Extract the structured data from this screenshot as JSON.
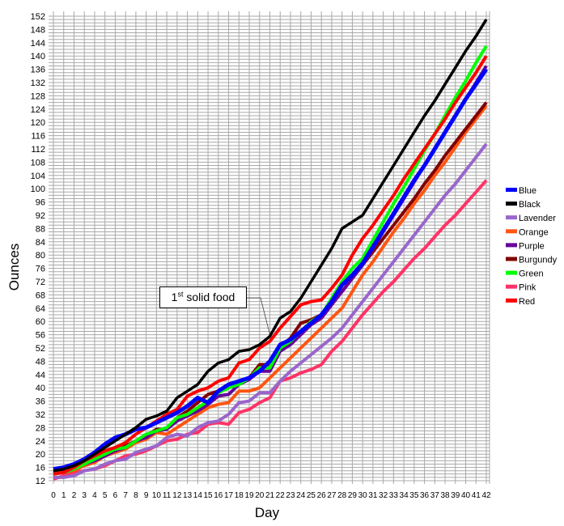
{
  "chart_data": {
    "type": "line",
    "title": "",
    "xlabel": "Day",
    "ylabel": "Ounces",
    "xlim": [
      0,
      42
    ],
    "ylim": [
      12,
      152
    ],
    "grid": true,
    "legend_position": "right",
    "x": [
      0,
      1,
      2,
      3,
      4,
      5,
      6,
      7,
      8,
      9,
      10,
      11,
      12,
      13,
      14,
      15,
      16,
      17,
      18,
      19,
      20,
      21,
      22,
      23,
      24,
      25,
      26,
      27,
      28,
      29,
      30,
      31,
      32,
      33,
      34,
      35,
      36,
      37,
      38,
      39,
      40,
      41,
      42
    ],
    "yticks": [
      12,
      16,
      20,
      24,
      28,
      32,
      36,
      40,
      44,
      48,
      52,
      56,
      60,
      64,
      68,
      72,
      76,
      80,
      84,
      88,
      92,
      96,
      100,
      104,
      108,
      112,
      116,
      120,
      124,
      128,
      132,
      136,
      140,
      144,
      148,
      152
    ],
    "series": [
      {
        "name": "Blue",
        "color": "#0000ff",
        "values": [
          15.5,
          16,
          17,
          18.5,
          20.5,
          23,
          25,
          26,
          27.5,
          28,
          29.5,
          31,
          32.5,
          34.5,
          37,
          35.5,
          39,
          41,
          42,
          43,
          45,
          48,
          53,
          54.5,
          57,
          59.5,
          62,
          66,
          71,
          74,
          77.5,
          82.5,
          87.5,
          92.5,
          97.5,
          102.5,
          107,
          112,
          117,
          122,
          127,
          131.5,
          136
        ]
      },
      {
        "name": "Black",
        "color": "#000000",
        "values": [
          15,
          15.5,
          16.5,
          18,
          20,
          22,
          24,
          26,
          28,
          30.5,
          31.5,
          33,
          37,
          39,
          41,
          45,
          47.5,
          48.5,
          51,
          51.5,
          53,
          55.5,
          61,
          63,
          67,
          72,
          77,
          82,
          88,
          90,
          92,
          97,
          102,
          107,
          112,
          117,
          122,
          126.5,
          131.5,
          136.5,
          141.5,
          146,
          151
        ]
      },
      {
        "name": "Lavender",
        "color": "#9966cc",
        "values": [
          13,
          13,
          13.5,
          15,
          15.5,
          17,
          18,
          18.5,
          20.5,
          21.5,
          22.5,
          25,
          26,
          25.5,
          28,
          29.5,
          30,
          32,
          35.5,
          36,
          38.5,
          38.5,
          42,
          45,
          47.5,
          50,
          52.5,
          55,
          58,
          62,
          66,
          70,
          74,
          78,
          82,
          86,
          90,
          94,
          98,
          101.5,
          105.5,
          109.5,
          113.5
        ]
      },
      {
        "name": "Orange",
        "color": "#ff5511",
        "values": [
          14,
          14.5,
          15,
          16.5,
          17.5,
          19.5,
          20.5,
          21.5,
          23.5,
          24.5,
          26.5,
          26,
          28,
          30,
          32,
          34,
          35,
          35.5,
          39,
          39,
          40,
          43,
          46,
          49,
          52,
          55,
          58,
          61,
          64,
          69,
          74,
          78,
          82.5,
          87,
          91,
          95.5,
          99.5,
          104,
          108,
          112.5,
          117,
          121,
          125
        ]
      },
      {
        "name": "Purple",
        "color": "#660099",
        "values": [
          14,
          14.5,
          15.5,
          17,
          18,
          19.5,
          21,
          22,
          24,
          25,
          27,
          27.5,
          30,
          31.5,
          33,
          35,
          37.5,
          38,
          41,
          42.5,
          45,
          45,
          51,
          53,
          56,
          59,
          61,
          65,
          69,
          73,
          77,
          82,
          87,
          92,
          97,
          102,
          107,
          112,
          117,
          122,
          127,
          132,
          137
        ]
      },
      {
        "name": "Burgundy",
        "color": "#800000",
        "values": [
          14.5,
          15,
          16,
          17.5,
          19,
          21,
          22,
          22.5,
          24,
          25.5,
          27.5,
          27.5,
          31,
          33,
          35.5,
          38,
          39,
          40,
          42,
          43,
          47,
          47,
          52,
          55,
          59.5,
          60.5,
          62,
          66,
          69,
          73,
          77,
          81,
          85,
          89,
          93,
          97,
          101.5,
          105.5,
          110,
          114,
          118,
          122,
          126
        ]
      },
      {
        "name": "Green",
        "color": "#00ff00",
        "values": [
          14,
          14.5,
          15.5,
          17,
          18.5,
          20,
          21.5,
          22,
          24,
          26,
          27,
          28,
          31,
          32,
          34,
          36,
          38.5,
          40,
          41,
          43,
          46,
          46,
          52,
          54,
          57,
          60,
          62,
          67,
          72,
          76,
          79,
          84.5,
          90,
          95.5,
          100.5,
          106,
          111.5,
          116.5,
          122,
          127.5,
          132.5,
          138,
          143
        ]
      },
      {
        "name": "Pink",
        "color": "#ff3366",
        "values": [
          12.5,
          13.5,
          14.5,
          15,
          15.5,
          16.5,
          18,
          19.5,
          20,
          21,
          22.5,
          24,
          24.5,
          26,
          26.5,
          29,
          29.5,
          29,
          32.5,
          33.5,
          35.5,
          37,
          42,
          43,
          44.5,
          45.5,
          47,
          51,
          54,
          58,
          62,
          65.5,
          69,
          72,
          75.5,
          79,
          82,
          85.5,
          89,
          92,
          95.5,
          99,
          102.5
        ]
      },
      {
        "name": "Red",
        "color": "#ff0000",
        "values": [
          14,
          14.5,
          16,
          18,
          19.5,
          21,
          22,
          23.5,
          26,
          28,
          30,
          32,
          33.5,
          37.5,
          39,
          40,
          42,
          43,
          47.5,
          48.5,
          52,
          54,
          58,
          61.5,
          65,
          66,
          66.5,
          70,
          74,
          80,
          85,
          89,
          93.5,
          98,
          103,
          107.5,
          112,
          116.5,
          121,
          126,
          130.5,
          135,
          140
        ]
      }
    ],
    "annotations": [
      {
        "text_main": "1",
        "text_sup": "st",
        "text_rest": " solid food",
        "x": 21,
        "y": 55.5
      }
    ]
  }
}
